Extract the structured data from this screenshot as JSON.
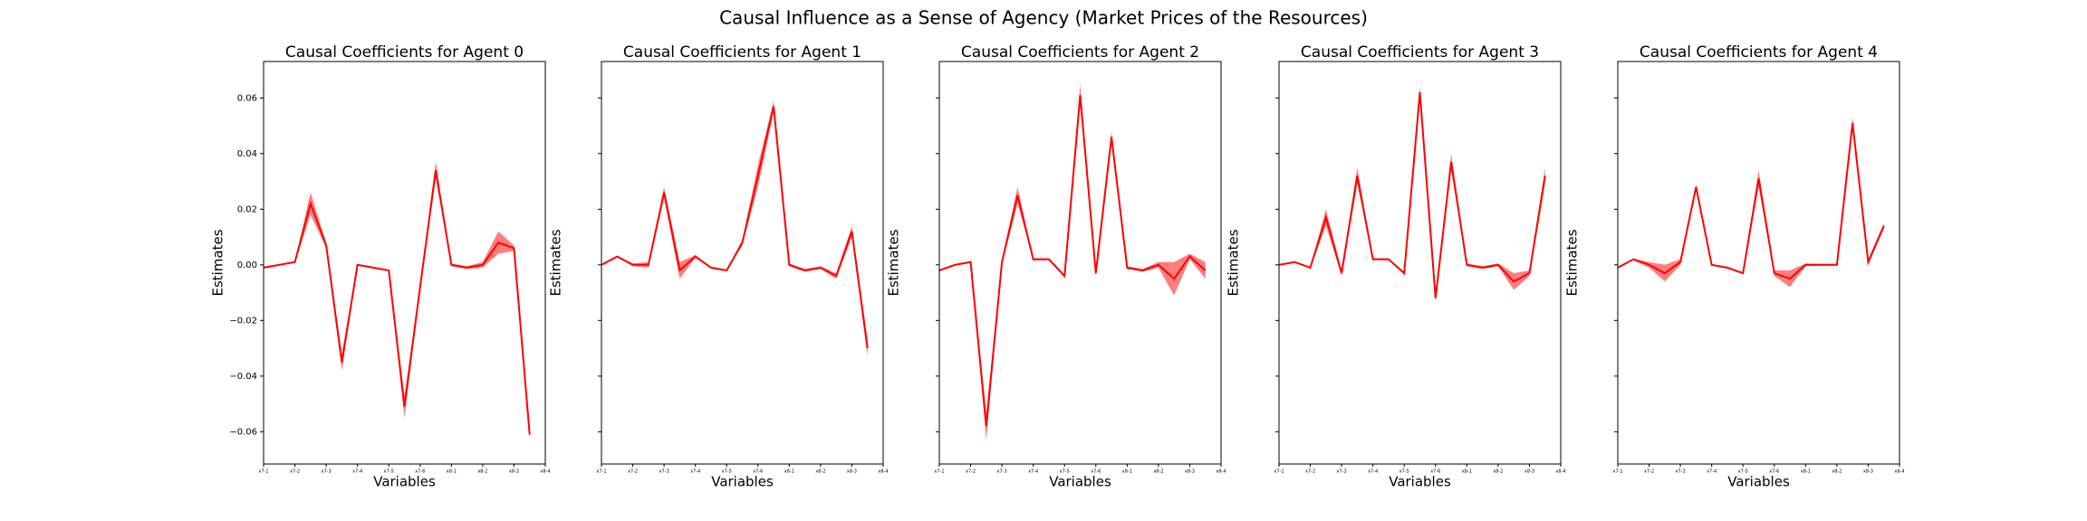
{
  "title": "Causal Influence as a Sense of Agency (Market Prices of the Resources)",
  "chart_data": [
    {
      "type": "line",
      "title": "Causal Coefficients for Agent 0",
      "x_label": "Variables",
      "y_label": "Estimates",
      "show_ytick_labels": true,
      "x": [
        0,
        1,
        2,
        3,
        4,
        5,
        6,
        7,
        8,
        9,
        10,
        11,
        12,
        13,
        14,
        15,
        16,
        17
      ],
      "xlim": [
        0,
        18
      ],
      "xticks": [
        {
          "value": 0,
          "label": "x7-1"
        },
        {
          "value": 2,
          "label": "x7-2"
        },
        {
          "value": 4,
          "label": "x7-3"
        },
        {
          "value": 6,
          "label": "x7-4"
        },
        {
          "value": 8,
          "label": "x7-5"
        },
        {
          "value": 10,
          "label": "x7-6"
        },
        {
          "value": 12,
          "label": "x8-1"
        },
        {
          "value": 14,
          "label": "x8-2"
        },
        {
          "value": 16,
          "label": "x8-3"
        },
        {
          "value": 18,
          "label": "x8-4"
        }
      ],
      "ylim": [
        -0.0716,
        0.0731
      ],
      "yticks": [
        0.06,
        0.04,
        0.02,
        {
          "value": 0,
          "label": "0.00"
        },
        {
          "value": -0.02,
          "label": "−0.02"
        },
        {
          "value": -0.04,
          "label": "−0.04"
        },
        {
          "value": -0.06,
          "label": "−0.06"
        }
      ],
      "series": [
        {
          "color": "#ff0000",
          "band_color": "#ff6666",
          "values": [
            -0.001,
            0.0,
            0.001,
            0.022,
            0.007,
            -0.035,
            0.0,
            -0.001,
            -0.002,
            -0.051,
            -0.008,
            0.034,
            0.0,
            -0.001,
            0.0,
            0.008,
            0.006,
            -0.061
          ],
          "errors": [
            0.0003,
            0.0003,
            0.0003,
            0.004,
            0.001,
            0.003,
            0.0003,
            0.0003,
            0.0003,
            0.004,
            0.001,
            0.003,
            0.0005,
            0.0005,
            0.001,
            0.004,
            0.001,
            0.002
          ]
        }
      ]
    },
    {
      "type": "line",
      "title": "Causal Coefficients for Agent 1",
      "x_label": "Variables",
      "y_label": "Estimates",
      "show_ytick_labels": false,
      "x": [
        0,
        1,
        2,
        3,
        4,
        5,
        6,
        7,
        8,
        9,
        10,
        11,
        12,
        13,
        14,
        15,
        16,
        17
      ],
      "xlim": [
        0,
        18
      ],
      "xticks": [
        {
          "value": 0,
          "label": "x7-1"
        },
        {
          "value": 2,
          "label": "x7-2"
        },
        {
          "value": 4,
          "label": "x7-3"
        },
        {
          "value": 6,
          "label": "x7-4"
        },
        {
          "value": 8,
          "label": "x7-5"
        },
        {
          "value": 10,
          "label": "x7-6"
        },
        {
          "value": 12,
          "label": "x8-1"
        },
        {
          "value": 14,
          "label": "x8-2"
        },
        {
          "value": 16,
          "label": "x8-3"
        },
        {
          "value": 18,
          "label": "x8-4"
        }
      ],
      "ylim": [
        -0.0716,
        0.0731
      ],
      "yticks": [
        0.06,
        0.04,
        0.02,
        0,
        -0.02,
        -0.04,
        -0.06
      ],
      "series": [
        {
          "color": "#ff0000",
          "band_color": "#ff6666",
          "values": [
            0.0,
            0.003,
            0.0,
            0.0,
            0.026,
            -0.002,
            0.003,
            -0.001,
            -0.002,
            0.008,
            0.032,
            0.057,
            0.0,
            -0.002,
            -0.001,
            -0.004,
            0.012,
            -0.03
          ],
          "errors": [
            0.0003,
            0.0003,
            0.0005,
            0.001,
            0.002,
            0.003,
            0.0005,
            0.0003,
            0.0003,
            0.001,
            0.004,
            0.002,
            0.0005,
            0.0005,
            0.0005,
            0.001,
            0.002,
            0.003
          ]
        }
      ]
    },
    {
      "type": "line",
      "title": "Causal Coefficients for Agent 2",
      "x_label": "Variables",
      "y_label": "Estimates",
      "show_ytick_labels": false,
      "x": [
        0,
        1,
        2,
        3,
        4,
        5,
        6,
        7,
        8,
        9,
        10,
        11,
        12,
        13,
        14,
        15,
        16,
        17
      ],
      "xlim": [
        0,
        18
      ],
      "xticks": [
        {
          "value": 0,
          "label": "x7-1"
        },
        {
          "value": 2,
          "label": "x7-2"
        },
        {
          "value": 4,
          "label": "x7-3"
        },
        {
          "value": 6,
          "label": "x7-4"
        },
        {
          "value": 8,
          "label": "x7-5"
        },
        {
          "value": 10,
          "label": "x7-6"
        },
        {
          "value": 12,
          "label": "x8-1"
        },
        {
          "value": 14,
          "label": "x8-2"
        },
        {
          "value": 16,
          "label": "x8-3"
        },
        {
          "value": 18,
          "label": "x8-4"
        }
      ],
      "ylim": [
        -0.0716,
        0.0731
      ],
      "yticks": [
        0.06,
        0.04,
        0.02,
        0,
        -0.02,
        -0.04,
        -0.06
      ],
      "series": [
        {
          "color": "#ff0000",
          "band_color": "#ff6666",
          "values": [
            -0.002,
            0.0,
            0.001,
            -0.058,
            0.001,
            0.025,
            0.002,
            0.002,
            -0.004,
            0.061,
            -0.003,
            0.046,
            -0.001,
            -0.002,
            0.0,
            -0.005,
            0.003,
            -0.002
          ],
          "errors": [
            0.0003,
            0.0003,
            0.0003,
            0.005,
            0.001,
            0.003,
            0.0003,
            0.0003,
            0.0005,
            0.004,
            0.001,
            0.002,
            0.0005,
            0.0005,
            0.001,
            0.006,
            0.001,
            0.003
          ]
        }
      ]
    },
    {
      "type": "line",
      "title": "Causal Coefficients for Agent 3",
      "x_label": "Variables",
      "y_label": "Estimates",
      "show_ytick_labels": false,
      "x": [
        0,
        1,
        2,
        3,
        4,
        5,
        6,
        7,
        8,
        9,
        10,
        11,
        12,
        13,
        14,
        15,
        16,
        17
      ],
      "xlim": [
        0,
        18
      ],
      "xticks": [
        {
          "value": 0,
          "label": "x7-1"
        },
        {
          "value": 2,
          "label": "x7-2"
        },
        {
          "value": 4,
          "label": "x7-3"
        },
        {
          "value": 6,
          "label": "x7-4"
        },
        {
          "value": 8,
          "label": "x7-5"
        },
        {
          "value": 10,
          "label": "x7-6"
        },
        {
          "value": 12,
          "label": "x8-1"
        },
        {
          "value": 14,
          "label": "x8-2"
        },
        {
          "value": 16,
          "label": "x8-3"
        },
        {
          "value": 18,
          "label": "x8-4"
        }
      ],
      "ylim": [
        -0.0716,
        0.0731
      ],
      "yticks": [
        0.06,
        0.04,
        0.02,
        0,
        -0.02,
        -0.04,
        -0.06
      ],
      "series": [
        {
          "color": "#ff0000",
          "band_color": "#ff6666",
          "values": [
            0.0,
            0.001,
            -0.001,
            0.017,
            -0.003,
            0.032,
            0.002,
            0.002,
            -0.003,
            0.062,
            -0.012,
            0.037,
            0.0,
            -0.001,
            0.0,
            -0.006,
            -0.003,
            0.032
          ],
          "errors": [
            0.0003,
            0.0003,
            0.0003,
            0.003,
            0.001,
            0.003,
            0.0003,
            0.0003,
            0.0005,
            0.002,
            0.001,
            0.003,
            0.0005,
            0.0005,
            0.0005,
            0.003,
            0.001,
            0.003
          ]
        }
      ]
    },
    {
      "type": "line",
      "title": "Causal Coefficients for Agent 4",
      "x_label": "Variables",
      "y_label": "Estimates",
      "show_ytick_labels": false,
      "x": [
        0,
        1,
        2,
        3,
        4,
        5,
        6,
        7,
        8,
        9,
        10,
        11,
        12,
        13,
        14,
        15,
        16,
        17
      ],
      "xlim": [
        0,
        18
      ],
      "xticks": [
        {
          "value": 0,
          "label": "x7-1"
        },
        {
          "value": 2,
          "label": "x7-2"
        },
        {
          "value": 4,
          "label": "x7-3"
        },
        {
          "value": 6,
          "label": "x7-4"
        },
        {
          "value": 8,
          "label": "x7-5"
        },
        {
          "value": 10,
          "label": "x7-6"
        },
        {
          "value": 12,
          "label": "x8-1"
        },
        {
          "value": 14,
          "label": "x8-2"
        },
        {
          "value": 16,
          "label": "x8-3"
        },
        {
          "value": 18,
          "label": "x8-4"
        }
      ],
      "ylim": [
        -0.0716,
        0.0731
      ],
      "yticks": [
        0.06,
        0.04,
        0.02,
        0,
        -0.02,
        -0.04,
        -0.06
      ],
      "series": [
        {
          "color": "#ff0000",
          "band_color": "#ff6666",
          "values": [
            -0.001,
            0.002,
            0.0,
            -0.003,
            0.001,
            0.028,
            0.0,
            -0.001,
            -0.003,
            0.031,
            -0.003,
            -0.005,
            0.0,
            0.0,
            0.0,
            0.051,
            0.001,
            0.014
          ],
          "errors": [
            0.0003,
            0.0003,
            0.001,
            0.003,
            0.001,
            0.001,
            0.0003,
            0.0003,
            0.0003,
            0.003,
            0.001,
            0.003,
            0.0005,
            0.0003,
            0.0003,
            0.002,
            0.001,
            0.001
          ]
        }
      ]
    }
  ]
}
